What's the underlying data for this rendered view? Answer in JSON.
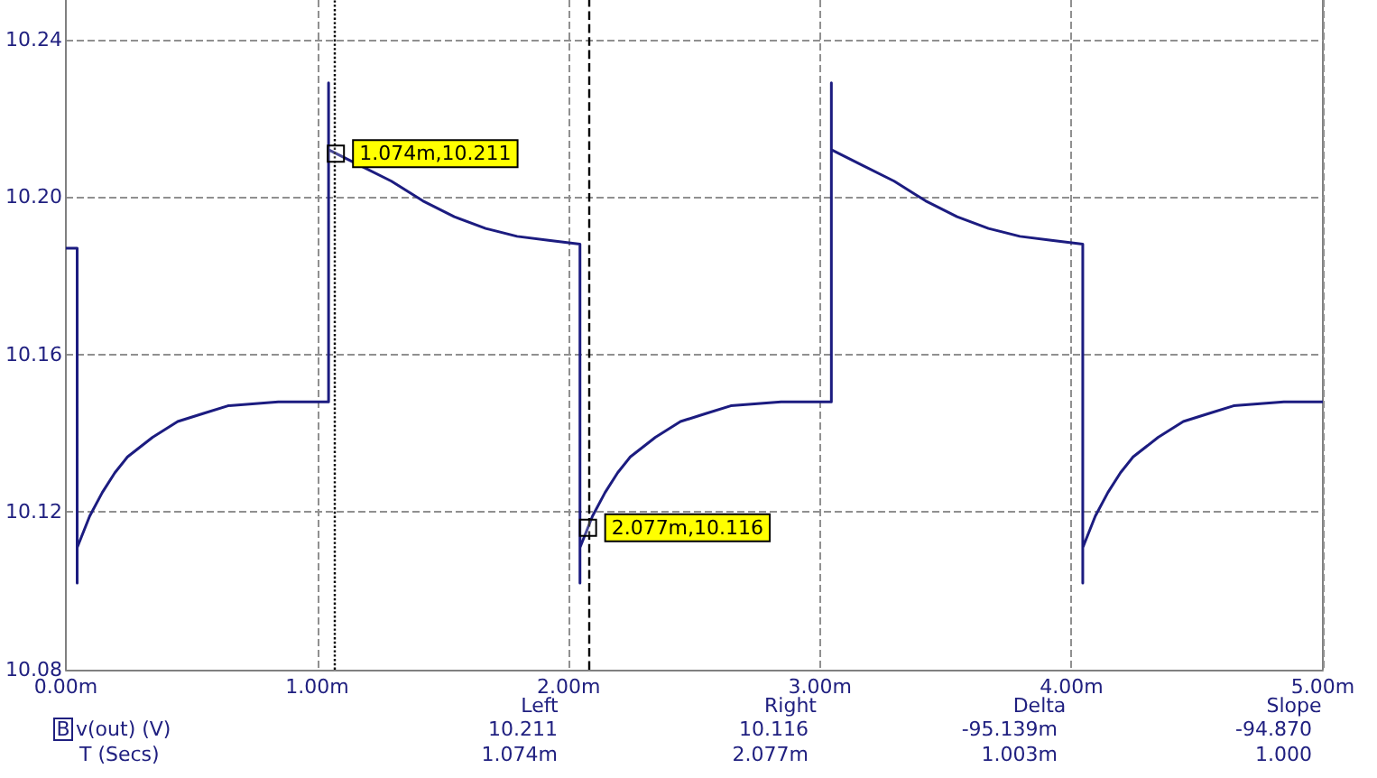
{
  "chart_data": {
    "type": "line",
    "x": [
      0,
      0.045,
      0.045,
      0.045,
      0.095,
      0.145,
      0.195,
      0.245,
      0.345,
      0.445,
      0.545,
      0.645,
      0.845,
      1.045,
      1.045,
      1.045,
      1.045,
      1.17,
      1.295,
      1.42,
      1.545,
      1.67,
      1.795,
      1.92,
      2.045,
      2.045,
      2.045,
      2.095,
      2.145,
      2.195,
      2.245,
      2.345,
      2.445,
      2.545,
      2.645,
      2.845,
      3.045,
      3.045,
      3.045,
      3.045,
      3.17,
      3.295,
      3.42,
      3.545,
      3.67,
      3.795,
      3.92,
      4.045,
      4.045,
      4.045,
      4.095,
      4.145,
      4.195,
      4.245,
      4.345,
      4.445,
      4.545,
      4.645,
      4.845,
      5.0
    ],
    "series": [
      {
        "color": "#1c1c80",
        "values": [
          10.187,
          10.187,
          10.102,
          10.111,
          10.119,
          10.125,
          10.13,
          10.134,
          10.139,
          10.143,
          10.145,
          10.147,
          10.148,
          10.148,
          10.148,
          10.229,
          10.212,
          10.208,
          10.204,
          10.199,
          10.195,
          10.192,
          10.19,
          10.189,
          10.188,
          10.102,
          10.111,
          10.119,
          10.125,
          10.13,
          10.134,
          10.139,
          10.143,
          10.145,
          10.147,
          10.148,
          10.148,
          10.148,
          10.229,
          10.212,
          10.208,
          10.204,
          10.199,
          10.195,
          10.192,
          10.19,
          10.189,
          10.188,
          10.102,
          10.111,
          10.119,
          10.125,
          10.13,
          10.134,
          10.139,
          10.143,
          10.145,
          10.147,
          10.148,
          10.148
        ]
      }
    ],
    "xlim": [
      0,
      5
    ],
    "xticks": [
      {
        "value": 0,
        "label": "0.00m"
      },
      {
        "value": 1,
        "label": "1.00m"
      },
      {
        "value": 2,
        "label": "2.00m"
      },
      {
        "value": 3,
        "label": "3.00m"
      },
      {
        "value": 4,
        "label": "4.00m"
      },
      {
        "value": 5,
        "label": "5.00m"
      }
    ],
    "ylim": [
      10.08,
      10.25
    ],
    "yticks": [
      10.08,
      10.12,
      10.16,
      {
        "value": 10.2,
        "label": "10.20"
      },
      10.24
    ],
    "grid": true,
    "marker": "none",
    "line_style": "solid",
    "ref_lines": [
      {
        "axis": "x",
        "value": 1.074,
        "color": "#000000",
        "line_style": "dotted"
      },
      {
        "axis": "x",
        "value": 2.077,
        "color": "#000000",
        "line_style": "dashed"
      }
    ],
    "annotations": [
      {
        "text": "1.074m,10.211",
        "x": 1.074,
        "y": 10.211
      },
      {
        "text": "2.077m,10.116",
        "x": 2.077,
        "y": 10.116
      },
      "Left",
      "Right",
      "Delta",
      "Slope",
      "B",
      "v(out) (V)",
      "10.211",
      "10.116",
      "-95.139m",
      "-94.870",
      "T (Secs)",
      "1.074m",
      "2.077m",
      "1.003m",
      "1.000"
    ]
  }
}
